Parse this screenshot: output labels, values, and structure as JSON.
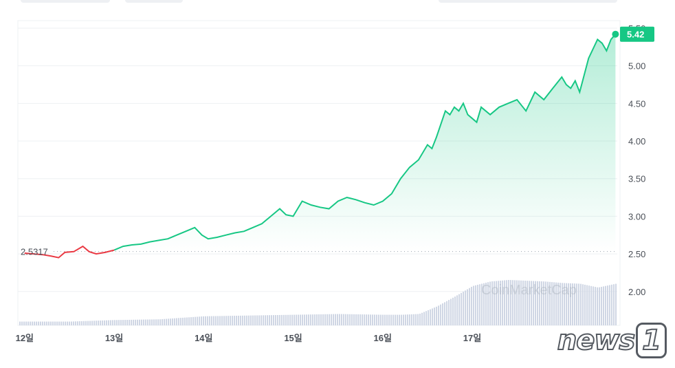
{
  "colors": {
    "up": "#16c784",
    "down": "#ea3943",
    "area_top": "#16c784",
    "volume": "#cfd6e4",
    "grid": "#eef0f3",
    "baseline_dots": "#9aa3ae"
  },
  "chart_data": {
    "type": "area",
    "ylim": [
      1.55,
      5.6
    ],
    "yticks": [
      "2.00",
      "2.50",
      "3.00",
      "3.50",
      "4.00",
      "4.50",
      "5.00",
      "5.50"
    ],
    "xticks": [
      "12일",
      "13일",
      "14일",
      "15일",
      "16일",
      "17일"
    ],
    "x_range": [
      11.94,
      18.62
    ],
    "baseline": 2.5317,
    "baseline_label": "2.5317",
    "last_price_label": "5.42",
    "last_price": 5.42,
    "series": [
      {
        "x": [
          12.0,
          12.1,
          12.2,
          12.3,
          12.38,
          12.45,
          12.55,
          12.65,
          12.72,
          12.8,
          12.9,
          13.0,
          13.1,
          13.2,
          13.3,
          13.4,
          13.5,
          13.6,
          13.7,
          13.8,
          13.9,
          13.98,
          14.05,
          14.15,
          14.25,
          14.35,
          14.45,
          14.55,
          14.65,
          14.75,
          14.85,
          14.92,
          15.0,
          15.1,
          15.2,
          15.3,
          15.4,
          15.5,
          15.6,
          15.7,
          15.8,
          15.9,
          16.0,
          16.1,
          16.2,
          16.3,
          16.4,
          16.5,
          16.55,
          16.6,
          16.7,
          16.75,
          16.8,
          16.85,
          16.9,
          16.95,
          17.0,
          17.05,
          17.1,
          17.2,
          17.3,
          17.4,
          17.5,
          17.6,
          17.7,
          17.8,
          17.9,
          18.0,
          18.05,
          18.1,
          18.15,
          18.2,
          18.3,
          18.4,
          18.45,
          18.5,
          18.55,
          18.6
        ],
        "y": [
          2.51,
          2.5,
          2.49,
          2.47,
          2.45,
          2.52,
          2.53,
          2.6,
          2.53,
          2.5,
          2.52,
          2.55,
          2.6,
          2.62,
          2.63,
          2.66,
          2.68,
          2.7,
          2.75,
          2.8,
          2.85,
          2.75,
          2.7,
          2.72,
          2.75,
          2.78,
          2.8,
          2.85,
          2.9,
          3.0,
          3.1,
          3.02,
          3.0,
          3.2,
          3.15,
          3.12,
          3.1,
          3.2,
          3.25,
          3.22,
          3.18,
          3.15,
          3.2,
          3.3,
          3.5,
          3.65,
          3.75,
          3.95,
          3.9,
          4.05,
          4.4,
          4.35,
          4.45,
          4.4,
          4.5,
          4.35,
          4.3,
          4.25,
          4.45,
          4.35,
          4.45,
          4.5,
          4.55,
          4.4,
          4.65,
          4.55,
          4.7,
          4.85,
          4.75,
          4.7,
          4.8,
          4.65,
          5.1,
          5.35,
          5.3,
          5.2,
          5.35,
          5.42
        ]
      }
    ],
    "volume": {
      "x": [
        12.0,
        12.5,
        13.0,
        13.5,
        14.0,
        14.5,
        15.0,
        15.5,
        16.0,
        16.2,
        16.4,
        16.6,
        16.8,
        17.0,
        17.2,
        17.4,
        17.6,
        17.8,
        18.0,
        18.2,
        18.4,
        18.6
      ],
      "v": [
        0.05,
        0.05,
        0.07,
        0.08,
        0.12,
        0.13,
        0.14,
        0.15,
        0.14,
        0.14,
        0.15,
        0.25,
        0.38,
        0.52,
        0.58,
        0.6,
        0.59,
        0.58,
        0.56,
        0.55,
        0.5,
        0.55
      ],
      "vmax": 1.0
    }
  },
  "watermark": "CoinMarketCap",
  "logo": {
    "text": "news",
    "number": "1"
  }
}
